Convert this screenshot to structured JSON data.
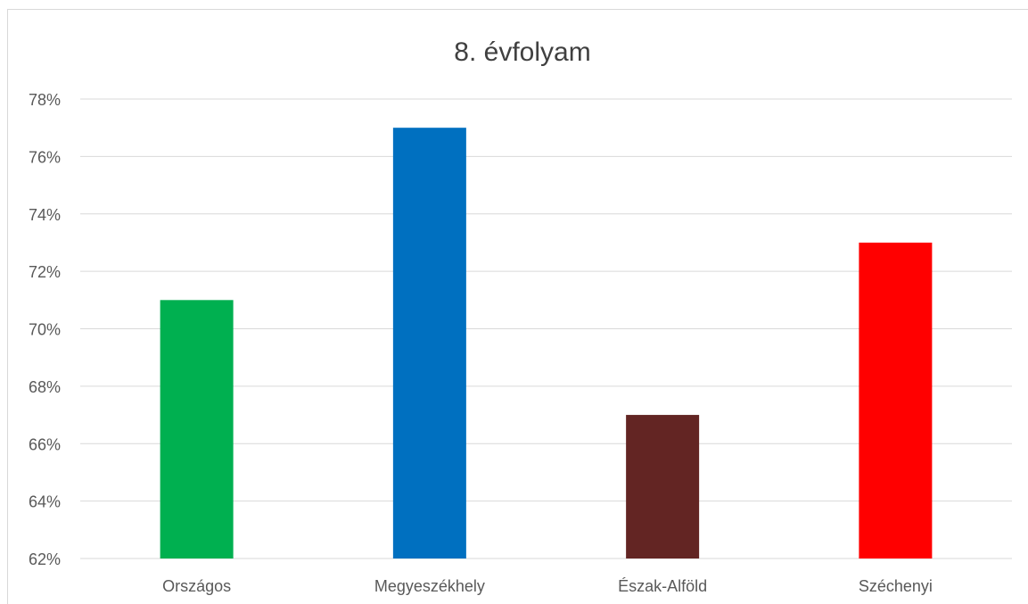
{
  "chart_data": {
    "type": "bar",
    "title": "8. évfolyam",
    "categories": [
      "Országos",
      "Megyeszékhely",
      "Észak-Alföld",
      "Széchenyi"
    ],
    "values": [
      71,
      77,
      67,
      73
    ],
    "colors": [
      "#00b050",
      "#0070c0",
      "#632523",
      "#ff0000"
    ],
    "yticks": [
      "62%",
      "64%",
      "66%",
      "68%",
      "70%",
      "72%",
      "74%",
      "76%",
      "78%"
    ],
    "ylim": [
      62,
      78
    ],
    "ytick_step": 2,
    "grid": true,
    "legend": "none"
  }
}
